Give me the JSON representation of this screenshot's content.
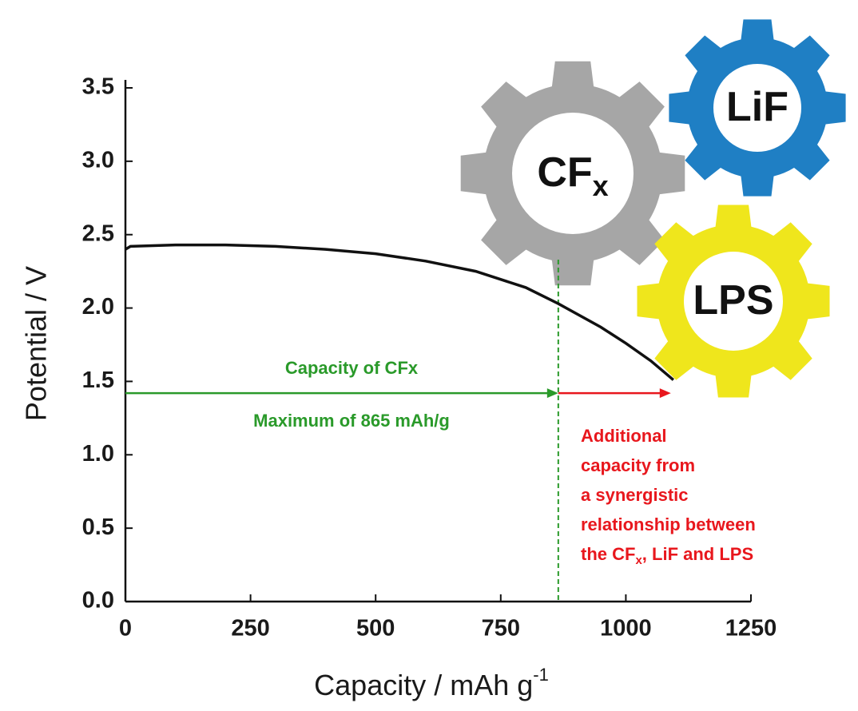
{
  "chart_data": {
    "type": "line",
    "xlabel": "Capacity / mAh g",
    "xlabel_sup": "-1",
    "ylabel": "Potential / V",
    "xlim": [
      0,
      1250
    ],
    "ylim": [
      0,
      3.5
    ],
    "xticks": [
      0,
      250,
      500,
      750,
      1000,
      1250
    ],
    "yticks": [
      {
        "value": 0,
        "label": "0.0"
      },
      0.5,
      {
        "value": 1,
        "label": "1.0"
      },
      1.5,
      {
        "value": 2,
        "label": "2.0"
      },
      2.5,
      {
        "value": 3,
        "label": "3.0"
      },
      3.5
    ],
    "color": "#111111",
    "x": [
      0,
      10,
      100,
      200,
      300,
      400,
      500,
      600,
      700,
      800,
      865,
      950,
      1000,
      1050,
      1095
    ],
    "values": [
      2.4,
      2.42,
      2.43,
      2.43,
      2.42,
      2.4,
      2.37,
      2.32,
      2.25,
      2.14,
      2.03,
      1.87,
      1.76,
      1.64,
      1.51
    ],
    "vline": {
      "x": 865,
      "color": "#2a9a2a"
    },
    "arrows": [
      {
        "x1": 0,
        "x2": 865,
        "y": 1.42,
        "color": "#2a9a2a"
      },
      {
        "x1": 865,
        "x2": 1090,
        "y": 1.42,
        "color": "#e8171d"
      }
    ],
    "green_text": [
      "Capacity of CFx",
      "Maximum of 865 mAh/g"
    ],
    "red_text": [
      "Additional",
      "capacity from",
      "a synergistic",
      "relationship between"
    ],
    "red_text_last": {
      "main": "the CF",
      "sub": "x",
      "rest": ", LiF and LPS"
    },
    "gears": [
      {
        "label": "LiF",
        "color": "#1f7fc4"
      },
      {
        "label": "CF",
        "sub": "x",
        "color": "#a6a6a6"
      },
      {
        "label": "LPS",
        "color": "#efe61c"
      }
    ]
  }
}
